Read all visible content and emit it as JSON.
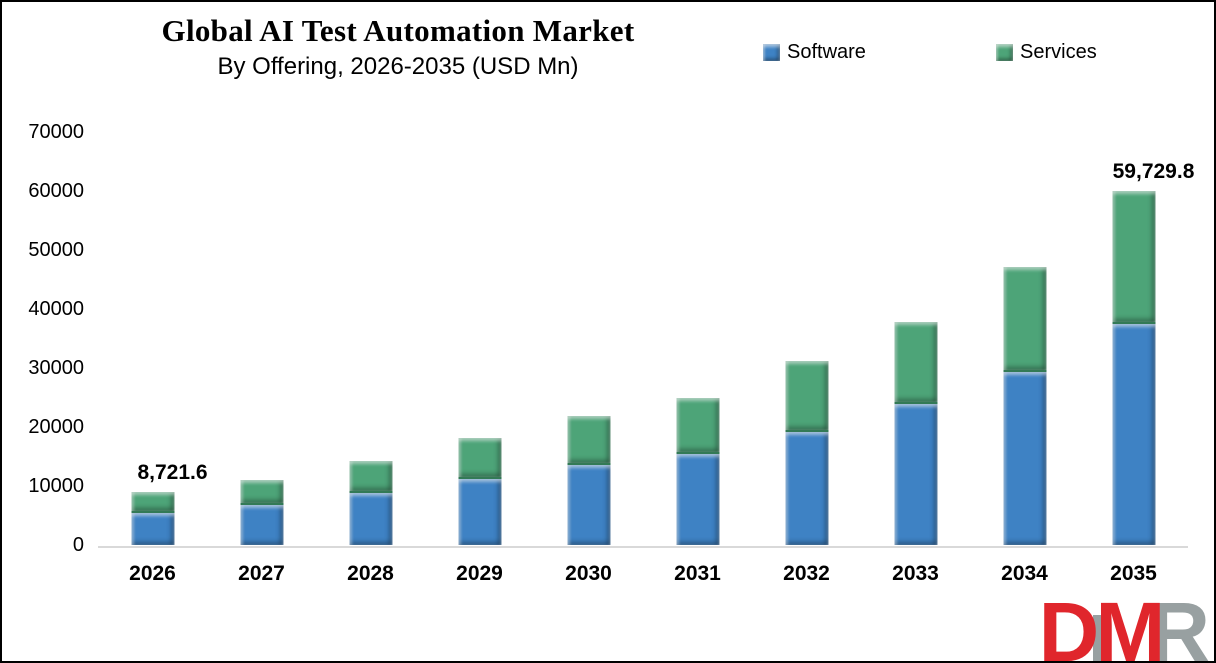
{
  "title": "Global AI Test Automation Market",
  "subtitle": "By Offering, 2026-2035 (USD Mn)",
  "legend": [
    {
      "label": "Software",
      "color": "#3e82c4"
    },
    {
      "label": "Services",
      "color": "#4da478"
    }
  ],
  "chart_data": {
    "type": "bar",
    "stacked": true,
    "title": "Global AI Test Automation Market",
    "subtitle": "By Offering, 2026-2035 (USD Mn)",
    "categories": [
      "2026",
      "2027",
      "2028",
      "2029",
      "2030",
      "2031",
      "2032",
      "2033",
      "2034",
      "2035"
    ],
    "series": [
      {
        "name": "Software",
        "color": "#3e82c4",
        "values": [
          5500,
          6800,
          8800,
          11200,
          13600,
          15400,
          19200,
          23900,
          29300,
          37500
        ]
      },
      {
        "name": "Services",
        "color": "#4da478",
        "values": [
          3221.6,
          3900,
          5100,
          6600,
          7900,
          9250,
          11650,
          13550,
          17500,
          22229.8
        ]
      }
    ],
    "totals": [
      8721.6,
      10700,
      13900,
      17800,
      21500,
      24650,
      30850,
      37450,
      46800,
      59729.8
    ],
    "data_labels": [
      {
        "category": "2026",
        "text": "8,721.6"
      },
      {
        "category": "2035",
        "text": "59,729.8"
      }
    ],
    "ylim": [
      0,
      70000
    ],
    "yticks": [
      0,
      10000,
      20000,
      30000,
      40000,
      50000,
      60000,
      70000
    ],
    "grid": false,
    "legend_position": "top-right",
    "axis_line_color": "#d9d9d9"
  },
  "logo": {
    "d": "D",
    "m": "M",
    "r": "R",
    "red": "#e0262c",
    "gray": "#98a0a1"
  }
}
